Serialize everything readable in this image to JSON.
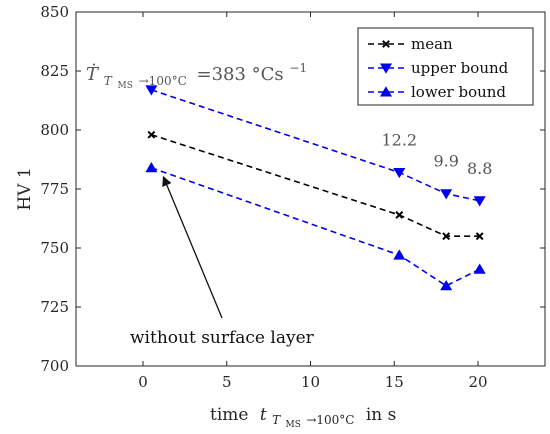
{
  "chart_data": {
    "type": "line",
    "xlabel": "time",
    "xlabel_var": "t",
    "xlabel_sub": "T",
    "xlabel_subsub": "MS",
    "xlabel_range": "→100°C",
    "xlabel_unit": "in s",
    "ylabel": "HV 1",
    "xlim": [
      -4,
      24
    ],
    "ylim": [
      700,
      850
    ],
    "xticks": [
      0,
      5,
      10,
      15,
      20
    ],
    "yticks": [
      700,
      725,
      750,
      775,
      800,
      825,
      850
    ],
    "grid": false,
    "legend_position": "top-right",
    "series": [
      {
        "name": "mean",
        "color": "#000000",
        "marker": "x",
        "x": [
          0.5,
          15.3,
          18.1,
          20.1
        ],
        "y": [
          798,
          764,
          755,
          755
        ]
      },
      {
        "name": "upper bound",
        "color": "#0000ee",
        "marker": "triangle-down",
        "x": [
          0.5,
          15.3,
          18.1,
          20.1
        ],
        "y": [
          817,
          782,
          773,
          770
        ]
      },
      {
        "name": "lower bound",
        "color": "#0000ee",
        "marker": "triangle-up",
        "x": [
          0.5,
          15.3,
          18.1,
          20.1
        ],
        "y": [
          784,
          747,
          734,
          741
        ]
      }
    ],
    "point_labels": [
      {
        "text": "12.2",
        "x": 15.3,
        "y": 782
      },
      {
        "text": "9.9",
        "x": 18.1,
        "y": 773
      },
      {
        "text": "8.8",
        "x": 20.1,
        "y": 770
      }
    ],
    "annotations": {
      "rate_symbol": "Ṫ",
      "rate_sub": "T",
      "rate_subsub": "MS",
      "rate_range": "→100°C",
      "rate_value": "=383 °Cs",
      "rate_exp": "−1",
      "arrow_text": "without surface layer",
      "arrow_target": {
        "x": 0.5,
        "y": 784
      }
    }
  }
}
